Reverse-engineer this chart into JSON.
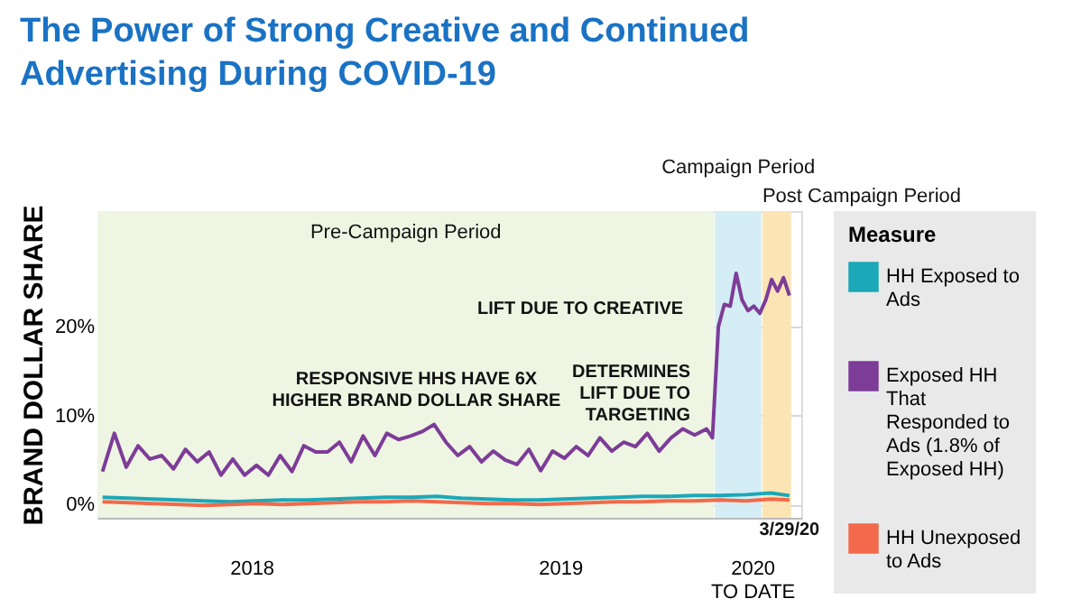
{
  "chart_data": {
    "type": "line",
    "title": "The Power of Strong Creative and Continued Advertising During COVID-19",
    "ylabel": "BRAND DOLLAR SHARE",
    "legend_title": "Measure",
    "legend": "right",
    "grid": "y",
    "line_style": "solid",
    "marker": "none",
    "xlim": [
      "2018-01-01",
      "2020-04-12"
    ],
    "ylim": [
      -1.5,
      33
    ],
    "xticks": [
      {
        "value": "2018-07-02",
        "label": "2018"
      },
      {
        "value": "2019-07-02",
        "label": "2019"
      },
      {
        "value": "2020-02-14",
        "label": "2020 TO DATE"
      }
    ],
    "yticks": [
      {
        "value": 0,
        "label": "0%"
      },
      {
        "value": 10,
        "label": "10%"
      },
      {
        "value": 20,
        "label": "20%"
      }
    ],
    "series": [
      {
        "name": "HH Exposed to Ads",
        "color": "#1ba8b8",
        "x": [
          "2018-01-07",
          "2018-02-07",
          "2018-03-07",
          "2018-04-07",
          "2018-05-07",
          "2018-06-07",
          "2018-07-07",
          "2018-08-07",
          "2018-09-07",
          "2018-10-07",
          "2018-11-07",
          "2018-12-07",
          "2019-01-07",
          "2019-02-07",
          "2019-03-07",
          "2019-04-07",
          "2019-05-07",
          "2019-06-07",
          "2019-07-07",
          "2019-08-07",
          "2019-09-07",
          "2019-10-07",
          "2019-11-07",
          "2019-12-07",
          "2020-01-07",
          "2020-02-07",
          "2020-03-07",
          "2020-03-29"
        ],
        "values": [
          0.8,
          0.7,
          0.6,
          0.5,
          0.4,
          0.3,
          0.4,
          0.5,
          0.5,
          0.6,
          0.7,
          0.8,
          0.8,
          0.9,
          0.7,
          0.6,
          0.5,
          0.5,
          0.6,
          0.7,
          0.8,
          0.9,
          0.9,
          1.0,
          1.0,
          1.1,
          1.3,
          1.0
        ]
      },
      {
        "name": "Exposed HH That Responded to Ads (1.8% of Exposed HH)",
        "color": "#7d3c98",
        "x": [
          "2018-01-07",
          "2018-01-21",
          "2018-02-04",
          "2018-02-18",
          "2018-03-04",
          "2018-03-18",
          "2018-04-01",
          "2018-04-15",
          "2018-04-29",
          "2018-05-13",
          "2018-05-27",
          "2018-06-10",
          "2018-06-24",
          "2018-07-08",
          "2018-07-22",
          "2018-08-05",
          "2018-08-19",
          "2018-09-02",
          "2018-09-16",
          "2018-09-30",
          "2018-10-14",
          "2018-10-28",
          "2018-11-11",
          "2018-11-25",
          "2018-12-09",
          "2018-12-23",
          "2019-01-06",
          "2019-01-20",
          "2019-02-03",
          "2019-02-17",
          "2019-03-03",
          "2019-03-17",
          "2019-03-31",
          "2019-04-14",
          "2019-04-28",
          "2019-05-12",
          "2019-05-26",
          "2019-06-09",
          "2019-06-23",
          "2019-07-07",
          "2019-07-21",
          "2019-08-04",
          "2019-08-18",
          "2019-09-01",
          "2019-09-15",
          "2019-09-29",
          "2019-10-13",
          "2019-10-27",
          "2019-11-10",
          "2019-11-24",
          "2019-12-08",
          "2019-12-22",
          "2019-12-29",
          "2020-01-05",
          "2020-01-12",
          "2020-01-19",
          "2020-01-26",
          "2020-02-02",
          "2020-02-09",
          "2020-02-16",
          "2020-02-23",
          "2020-03-01",
          "2020-03-08",
          "2020-03-15",
          "2020-03-22",
          "2020-03-29"
        ],
        "values": [
          3.7,
          8.0,
          4.2,
          6.6,
          5.1,
          5.5,
          4.0,
          6.2,
          4.8,
          5.9,
          3.3,
          5.1,
          3.3,
          4.4,
          3.3,
          5.5,
          3.7,
          6.6,
          5.9,
          5.9,
          7.0,
          4.8,
          7.7,
          5.5,
          8.0,
          7.3,
          7.7,
          8.2,
          9.0,
          7.0,
          5.5,
          6.5,
          4.8,
          6.0,
          5.0,
          4.5,
          6.2,
          3.8,
          6.0,
          5.2,
          6.5,
          5.5,
          7.5,
          6.0,
          7.0,
          6.5,
          8.0,
          6.0,
          7.5,
          8.5,
          7.8,
          8.5,
          7.5,
          20.0,
          22.5,
          22.3,
          26.0,
          23.0,
          21.8,
          22.3,
          21.5,
          23.0,
          25.3,
          24.0,
          25.5,
          23.5
        ]
      },
      {
        "name": "HH Unexposed to Ads",
        "color": "#f26a4b",
        "x": [
          "2018-01-07",
          "2018-02-07",
          "2018-03-07",
          "2018-04-07",
          "2018-05-07",
          "2018-06-07",
          "2018-07-07",
          "2018-08-07",
          "2018-09-07",
          "2018-10-07",
          "2018-11-07",
          "2018-12-07",
          "2019-01-07",
          "2019-02-07",
          "2019-03-07",
          "2019-04-07",
          "2019-05-07",
          "2019-06-07",
          "2019-07-07",
          "2019-08-07",
          "2019-09-07",
          "2019-10-07",
          "2019-11-07",
          "2019-12-07",
          "2020-01-07",
          "2020-02-07",
          "2020-03-07",
          "2020-03-29"
        ],
        "values": [
          0.3,
          0.2,
          0.1,
          0.0,
          -0.1,
          0.0,
          0.1,
          0.0,
          0.1,
          0.2,
          0.3,
          0.3,
          0.4,
          0.3,
          0.2,
          0.1,
          0.1,
          0.0,
          0.1,
          0.2,
          0.3,
          0.3,
          0.4,
          0.4,
          0.5,
          0.4,
          0.6,
          0.5
        ]
      }
    ],
    "bands": [
      {
        "axis": "x",
        "from": "2018-01-01",
        "to": "2019-12-31",
        "label": "Pre-Campaign Period",
        "color": "#eef5e2"
      },
      {
        "axis": "x",
        "from": "2020-01-01",
        "to": "2020-02-25",
        "label": "Campaign Period",
        "color": "#d5edf4"
      },
      {
        "axis": "x",
        "from": "2020-02-26",
        "to": "2020-03-31",
        "label": "Post Campaign Period",
        "color": "#fbe5b5"
      }
    ],
    "annotations": [
      {
        "text": "RESPONSIVE HHS HAVE 6X HIGHER BRAND DOLLAR SHARE",
        "x": "2019-01-13",
        "y": 8
      },
      {
        "text": "LIFT DUE TO CREATIVE",
        "x": "2019-12-20",
        "y": 22
      },
      {
        "text": "DETERMINES LIFT DUE TO TARGETING",
        "x": "2019-12-20",
        "y": 8
      },
      {
        "text": "3/29/20",
        "x": "2020-03-29",
        "y": 0
      }
    ]
  }
}
